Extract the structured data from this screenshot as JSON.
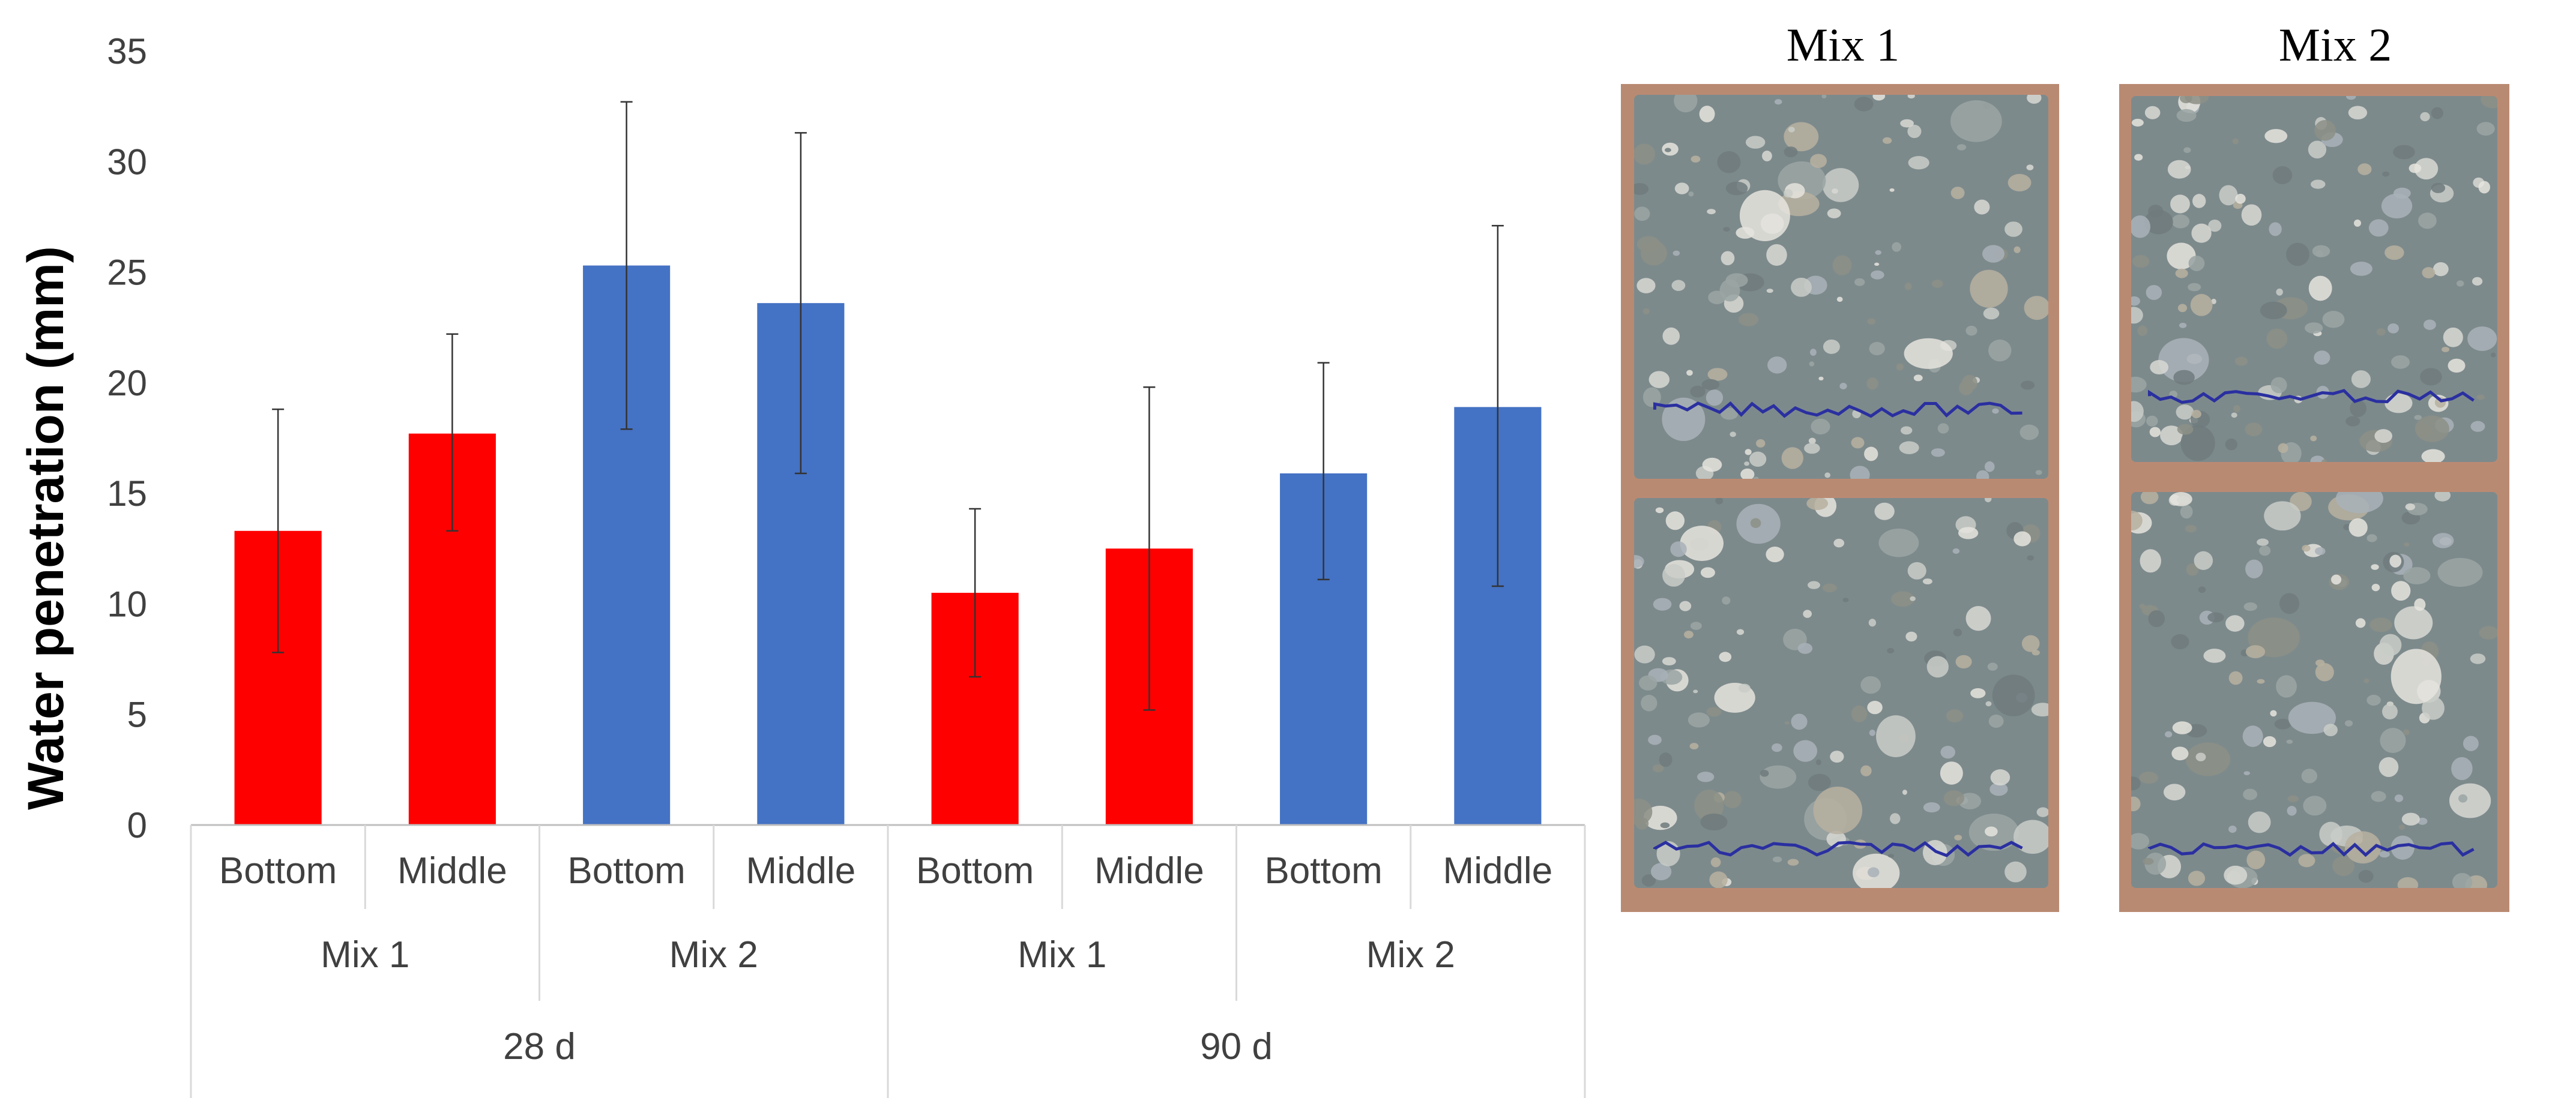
{
  "chart_data": {
    "type": "bar",
    "title": "",
    "ylabel": "Water penetration (mm)",
    "ylim": [
      0,
      35
    ],
    "yticks": [
      0,
      5,
      10,
      15,
      20,
      25,
      30,
      35
    ],
    "grid": false,
    "legend": "none",
    "categories": [
      {
        "position": "Bottom",
        "mix": "Mix 1",
        "age": "28 d",
        "value": 13.3,
        "error": [
          7.8,
          18.8
        ],
        "color": "#ff0000"
      },
      {
        "position": "Middle",
        "mix": "Mix 1",
        "age": "28 d",
        "value": 17.7,
        "error": [
          13.3,
          22.2
        ],
        "color": "#ff0000"
      },
      {
        "position": "Bottom",
        "mix": "Mix 2",
        "age": "28 d",
        "value": 25.3,
        "error": [
          17.9,
          32.7
        ],
        "color": "#4472c4"
      },
      {
        "position": "Middle",
        "mix": "Mix 2",
        "age": "28 d",
        "value": 23.6,
        "error": [
          15.9,
          31.3
        ],
        "color": "#4472c4"
      },
      {
        "position": "Bottom",
        "mix": "Mix 1",
        "age": "90 d",
        "value": 10.5,
        "error": [
          6.7,
          14.3
        ],
        "color": "#ff0000"
      },
      {
        "position": "Middle",
        "mix": "Mix 1",
        "age": "90 d",
        "value": 12.5,
        "error": [
          5.2,
          19.8
        ],
        "color": "#ff0000"
      },
      {
        "position": "Bottom",
        "mix": "Mix 2",
        "age": "90 d",
        "value": 15.9,
        "error": [
          11.1,
          20.9
        ],
        "color": "#4472c4"
      },
      {
        "position": "Middle",
        "mix": "Mix 2",
        "age": "90 d",
        "value": 18.9,
        "error": [
          10.8,
          27.1
        ],
        "color": "#4472c4"
      }
    ],
    "mix_groups": [
      "Mix 1",
      "Mix 2",
      "Mix 1",
      "Mix 2"
    ],
    "age_groups": [
      "28 d",
      "90 d"
    ]
  },
  "photos": {
    "left_title": "Mix 1",
    "right_title": "Mix 2",
    "specimen_color": "#7d8a8c",
    "penetration_line_color": "#2a2fa0"
  }
}
